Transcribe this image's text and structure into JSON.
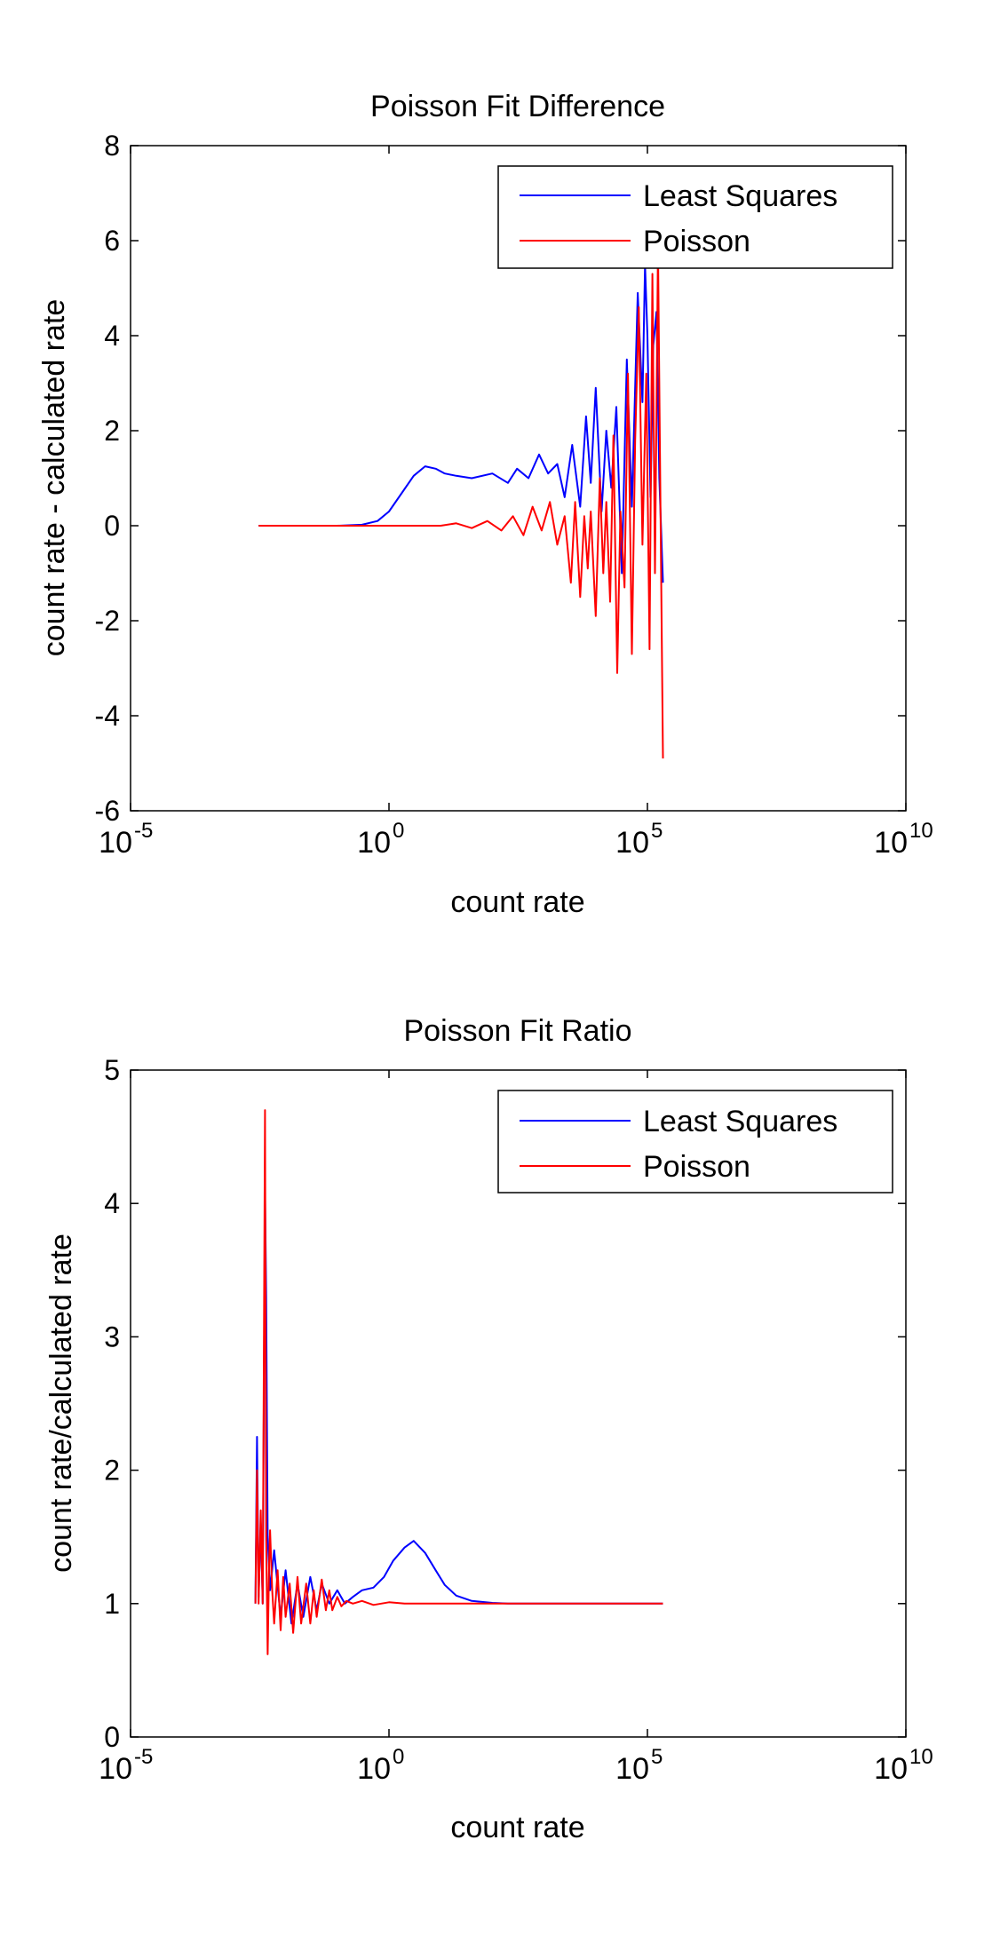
{
  "colors": {
    "least_squares": "#0000FF",
    "poisson": "#FF0000",
    "axis": "#000000",
    "background": "#FFFFFF"
  },
  "chart_data": [
    {
      "type": "line",
      "title": "Poisson Fit Difference",
      "xlabel": "count rate",
      "ylabel": "count rate - calculated rate",
      "x_scale": "log",
      "xlim": [
        1e-05,
        10000000000
      ],
      "ylim": [
        -6,
        8
      ],
      "x_ticks": [
        {
          "base": "10",
          "exp": "-5",
          "value": 1e-05
        },
        {
          "base": "10",
          "exp": "0",
          "value": 1
        },
        {
          "base": "10",
          "exp": "5",
          "value": 100000
        },
        {
          "base": "10",
          "exp": "10",
          "value": 10000000000
        }
      ],
      "y_ticks": [
        "-6",
        "-4",
        "-2",
        "0",
        "2",
        "4",
        "6",
        "8"
      ],
      "legend": {
        "position": "top-right",
        "entries": [
          "Least Squares",
          "Poisson"
        ]
      },
      "grid": false,
      "series": [
        {
          "name": "Least Squares",
          "color": "#0000FF",
          "x": [
            0.003,
            0.01,
            0.1,
            0.3,
            0.6,
            1,
            1.8,
            3,
            5,
            8,
            12,
            20,
            40,
            100,
            200,
            300,
            500,
            800,
            1200,
            1800,
            2500,
            3500,
            5000,
            6500,
            8000,
            10000,
            13000,
            16000,
            20000,
            25000,
            32000,
            40000,
            50000,
            65000,
            80000,
            90000,
            100000,
            115000,
            130000,
            150000,
            170000,
            200000
          ],
          "y": [
            0,
            0,
            0,
            0.02,
            0.1,
            0.3,
            0.7,
            1.05,
            1.25,
            1.2,
            1.1,
            1.05,
            1.0,
            1.1,
            0.9,
            1.2,
            1.0,
            1.5,
            1.1,
            1.3,
            0.6,
            1.7,
            0.4,
            2.3,
            0.9,
            2.9,
            0.3,
            2.0,
            0.8,
            2.5,
            -1.0,
            3.5,
            0.4,
            4.9,
            2.6,
            5.5,
            4.0,
            0.6,
            3.8,
            4.5,
            1.0,
            -1.2
          ]
        },
        {
          "name": "Poisson",
          "color": "#FF0000",
          "x": [
            0.003,
            0.01,
            0.1,
            1,
            3,
            10,
            20,
            40,
            80,
            150,
            250,
            400,
            600,
            900,
            1300,
            1800,
            2500,
            3300,
            4000,
            5000,
            6000,
            7000,
            8000,
            10000,
            12000,
            14000,
            16000,
            19000,
            22000,
            26000,
            30000,
            36000,
            42000,
            50000,
            58000,
            68000,
            80000,
            95000,
            110000,
            125000,
            140000,
            160000,
            180000,
            200000
          ],
          "y": [
            0,
            0,
            0,
            0,
            0,
            0,
            0.05,
            -0.05,
            0.1,
            -0.1,
            0.2,
            -0.2,
            0.4,
            -0.1,
            0.5,
            -0.4,
            0.2,
            -1.2,
            0.5,
            -1.5,
            0.2,
            -0.9,
            0.3,
            -1.9,
            1.0,
            -1.0,
            0.5,
            -1.6,
            1.9,
            -3.1,
            0.3,
            -1.3,
            3.2,
            -2.7,
            1.8,
            4.6,
            -0.4,
            3.2,
            -2.6,
            5.3,
            -1.0,
            5.9,
            0.0,
            -4.9
          ]
        }
      ]
    },
    {
      "type": "line",
      "title": "Poisson Fit Ratio",
      "xlabel": "count rate",
      "ylabel": "count rate/calculated rate",
      "x_scale": "log",
      "xlim": [
        1e-05,
        10000000000
      ],
      "ylim": [
        0,
        5
      ],
      "x_ticks": [
        {
          "base": "10",
          "exp": "-5",
          "value": 1e-05
        },
        {
          "base": "10",
          "exp": "0",
          "value": 1
        },
        {
          "base": "10",
          "exp": "5",
          "value": 100000
        },
        {
          "base": "10",
          "exp": "10",
          "value": 10000000000
        }
      ],
      "y_ticks": [
        "0",
        "1",
        "2",
        "3",
        "4",
        "5"
      ],
      "legend": {
        "position": "top-right",
        "entries": [
          "Least Squares",
          "Poisson"
        ]
      },
      "grid": false,
      "series": [
        {
          "name": "Least Squares",
          "color": "#0000FF",
          "x": [
            0.0026,
            0.0028,
            0.003,
            0.0033,
            0.0036,
            0.004,
            0.0042,
            0.0045,
            0.005,
            0.006,
            0.008,
            0.01,
            0.013,
            0.017,
            0.022,
            0.03,
            0.04,
            0.05,
            0.07,
            0.1,
            0.14,
            0.2,
            0.3,
            0.5,
            0.8,
            1.2,
            2,
            3,
            5,
            8,
            12,
            20,
            40,
            100,
            200,
            500,
            1000,
            10000,
            100000,
            200000
          ],
          "y": [
            1.0,
            2.25,
            1.05,
            1.6,
            1.0,
            4.1,
            3.3,
            1.5,
            1.1,
            1.4,
            0.9,
            1.25,
            0.85,
            1.15,
            0.9,
            1.2,
            0.95,
            1.15,
            1.0,
            1.1,
            1.0,
            1.05,
            1.1,
            1.12,
            1.2,
            1.32,
            1.42,
            1.47,
            1.38,
            1.25,
            1.14,
            1.06,
            1.02,
            1.005,
            1.0,
            1.0,
            1.0,
            1.0,
            1.0,
            1.0
          ]
        },
        {
          "name": "Poisson",
          "color": "#FF0000",
          "x": [
            0.0026,
            0.0028,
            0.003,
            0.0033,
            0.0036,
            0.004,
            0.0042,
            0.0045,
            0.0048,
            0.005,
            0.0055,
            0.006,
            0.007,
            0.008,
            0.009,
            0.01,
            0.012,
            0.014,
            0.017,
            0.02,
            0.025,
            0.03,
            0.035,
            0.04,
            0.05,
            0.06,
            0.07,
            0.08,
            0.1,
            0.12,
            0.15,
            0.2,
            0.3,
            0.5,
            1,
            2,
            5,
            10,
            100,
            1000,
            10000,
            100000,
            200000
          ],
          "y": [
            1.0,
            2.0,
            1.0,
            1.7,
            1.0,
            4.7,
            1.5,
            0.62,
            1.3,
            1.55,
            1.1,
            0.85,
            1.25,
            0.8,
            1.2,
            0.9,
            1.15,
            0.78,
            1.2,
            0.85,
            1.15,
            0.85,
            1.1,
            0.9,
            1.18,
            0.95,
            1.1,
            0.95,
            1.05,
            0.98,
            1.02,
            1.0,
            1.02,
            0.99,
            1.01,
            1.0,
            1.0,
            1.0,
            1.0,
            1.0,
            1.0,
            1.0,
            1.0
          ]
        }
      ]
    }
  ]
}
